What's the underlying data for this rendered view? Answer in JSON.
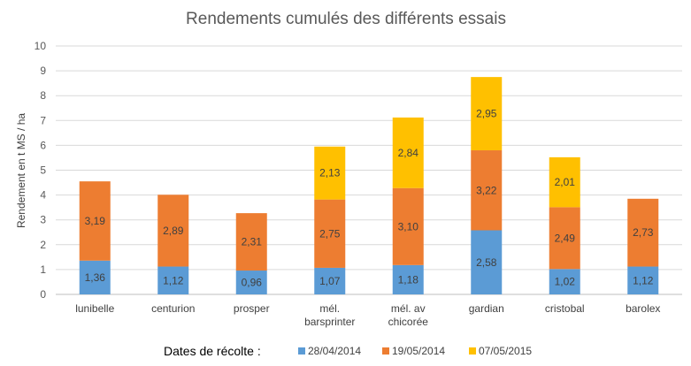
{
  "chart_data": {
    "type": "bar",
    "stacked": true,
    "title": "Rendements cumulés des différents essais",
    "ylabel": "Rendement en t MS / ha",
    "xlabel": "",
    "ylim": [
      0,
      10
    ],
    "yticks": [
      0,
      1,
      2,
      3,
      4,
      5,
      6,
      7,
      8,
      9,
      10
    ],
    "grid": true,
    "categories": [
      [
        "lunibelle"
      ],
      [
        "centurion"
      ],
      [
        "prosper"
      ],
      [
        "mél.",
        "barsprinter"
      ],
      [
        "mél. av",
        "chicorée"
      ],
      [
        "gardian"
      ],
      [
        "cristobal"
      ],
      [
        "barolex"
      ]
    ],
    "legend_title": "Dates de récolte :",
    "legend_position": "bottom",
    "series": [
      {
        "name": "28/04/2014",
        "color": "#5B9BD5",
        "values": [
          1.36,
          1.12,
          0.96,
          1.07,
          1.18,
          2.58,
          1.02,
          1.12
        ],
        "labels": [
          "1,36",
          "1,12",
          "0,96",
          "1,07",
          "1,18",
          "2,58",
          "1,02",
          "1,12"
        ]
      },
      {
        "name": "19/05/2014",
        "color": "#ED7D31",
        "values": [
          3.19,
          2.89,
          2.31,
          2.75,
          3.1,
          3.22,
          2.49,
          2.73
        ],
        "labels": [
          "3,19",
          "2,89",
          "2,31",
          "2,75",
          "3,10",
          "3,22",
          "2,49",
          "2,73"
        ]
      },
      {
        "name": "07/05/2015",
        "color": "#FFC000",
        "values": [
          null,
          null,
          null,
          2.13,
          2.84,
          2.95,
          2.01,
          null
        ],
        "labels": [
          null,
          null,
          null,
          "2,13",
          "2,84",
          "2,95",
          "2,01",
          null
        ]
      }
    ]
  }
}
